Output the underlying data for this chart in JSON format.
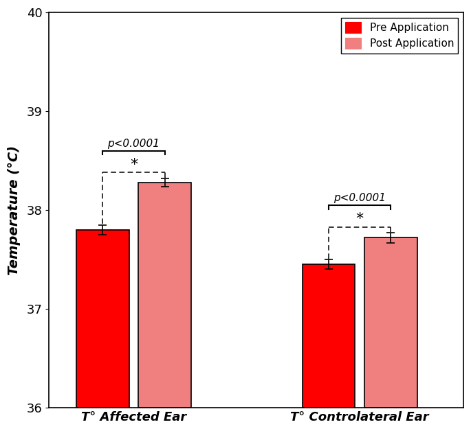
{
  "groups": [
    "T° Affected Ear",
    "T° Controlateral Ear"
  ],
  "pre_values": [
    37.8,
    37.45
  ],
  "post_values": [
    38.28,
    37.72
  ],
  "pre_errors": [
    0.05,
    0.05
  ],
  "post_errors": [
    0.04,
    0.05
  ],
  "pre_color": "#ff0000",
  "post_color": "#f08080",
  "ylabel": "Temperature (°C)",
  "ylim": [
    36,
    40
  ],
  "yticks": [
    36,
    37,
    38,
    39,
    40
  ],
  "legend_labels": [
    "Pre Application",
    "Post Application"
  ],
  "p_value_text": "p<0.0001",
  "star_text": "*",
  "bar_width": 0.28,
  "group_centers": [
    1.0,
    2.2
  ],
  "bar_gap": 0.05,
  "background_color": "#ffffff",
  "edge_color": "#000000",
  "axis_fontsize": 14,
  "tick_fontsize": 13,
  "legend_fontsize": 11,
  "annot_fontsize": 11,
  "star_fontsize": 16
}
